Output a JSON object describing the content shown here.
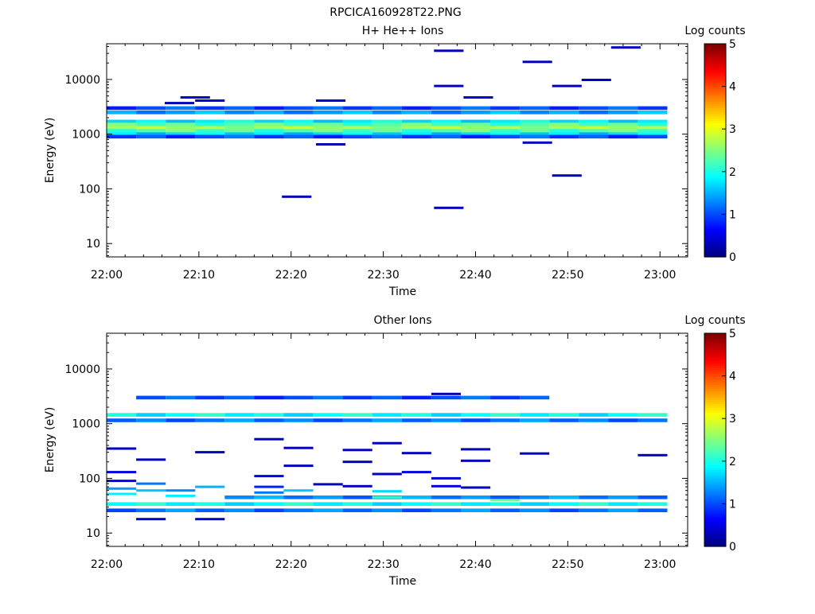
{
  "title": "RPCICA160928T22.PNG",
  "colors": {
    "axis": "#000000",
    "background": "#ffffff"
  },
  "chart_data": [
    {
      "type": "heatmap",
      "title": "H+ He++ Ions",
      "xlabel": "Time",
      "ylabel": "Energy (eV)",
      "xlim": [
        "22:00",
        "23:03"
      ],
      "ylim": [
        5.7,
        45000
      ],
      "yscale": "log",
      "xticks": [
        "22:00",
        "22:10",
        "22:20",
        "22:30",
        "22:40",
        "22:50",
        "23:00"
      ],
      "yticks": [
        10,
        100,
        1000,
        10000
      ],
      "ytick_labels": [
        "10",
        "100",
        "1000",
        "10000"
      ],
      "colorbar": {
        "label": "Log counts",
        "min": 0,
        "max": 5,
        "ticks": [
          "0",
          "1",
          "2",
          "3",
          "4",
          "5"
        ]
      },
      "time_bins_min": [
        0,
        3.2,
        6.4,
        9.6,
        12.8,
        16.0,
        19.2,
        22.4,
        25.6,
        28.8,
        32.0,
        35.2,
        38.4,
        41.6,
        44.8,
        48.0,
        51.2,
        54.4,
        57.6
      ],
      "bands": [
        {
          "energy": 3000,
          "level": 1.0
        },
        {
          "energy": 2500,
          "level": 1.4
        },
        {
          "energy": 1700,
          "level": 1.8
        },
        {
          "energy": 1500,
          "level": 2.3
        },
        {
          "energy": 1300,
          "level": 2.7
        },
        {
          "energy": 1150,
          "level": 2.3
        },
        {
          "energy": 1000,
          "level": 1.7
        },
        {
          "energy": 900,
          "level": 1.0
        }
      ],
      "sparse": [
        {
          "t": 7.9,
          "energy": 3700,
          "level": 0.3
        },
        {
          "t": 9.6,
          "energy": 4700,
          "level": 0.4
        },
        {
          "t": 11.2,
          "energy": 4100,
          "level": 0.4
        },
        {
          "t": 20.6,
          "energy": 72,
          "level": 0.3
        },
        {
          "t": 24.3,
          "energy": 4100,
          "level": 0.4
        },
        {
          "t": 24.3,
          "energy": 650,
          "level": 0.3
        },
        {
          "t": 37.1,
          "energy": 33500,
          "level": 0.3
        },
        {
          "t": 37.1,
          "energy": 7600,
          "level": 0.3
        },
        {
          "t": 37.1,
          "energy": 45,
          "level": 0.3
        },
        {
          "t": 40.3,
          "energy": 4700,
          "level": 0.4
        },
        {
          "t": 46.7,
          "energy": 21000,
          "level": 0.3
        },
        {
          "t": 46.7,
          "energy": 700,
          "level": 0.3
        },
        {
          "t": 49.9,
          "energy": 7600,
          "level": 0.3
        },
        {
          "t": 49.9,
          "energy": 175,
          "level": 0.3
        },
        {
          "t": 53.1,
          "energy": 9800,
          "level": 0.3
        },
        {
          "t": 56.3,
          "energy": 38500,
          "level": 0.3
        }
      ]
    },
    {
      "type": "heatmap",
      "title": "Other Ions",
      "xlabel": "Time",
      "ylabel": "Energy (eV)",
      "xlim": [
        "22:00",
        "23:03"
      ],
      "ylim": [
        5.7,
        45000
      ],
      "yscale": "log",
      "xticks": [
        "22:00",
        "22:10",
        "22:20",
        "22:30",
        "22:40",
        "22:50",
        "23:00"
      ],
      "yticks": [
        10,
        100,
        1000,
        10000
      ],
      "ytick_labels": [
        "10",
        "100",
        "1000",
        "10000"
      ],
      "colorbar": {
        "label": "Log counts",
        "min": 0,
        "max": 5,
        "ticks": [
          "0",
          "1",
          "2",
          "3",
          "4",
          "5"
        ]
      },
      "time_bins_min": [
        0,
        3.2,
        6.4,
        9.6,
        12.8,
        16.0,
        19.2,
        22.4,
        25.6,
        28.8,
        32.0,
        35.2,
        38.4,
        41.6,
        44.8,
        48.0,
        51.2,
        54.4,
        57.6
      ],
      "bands": [
        {
          "energy": 3000,
          "level": 1.0,
          "from": 3.2,
          "to": 48.0
        },
        {
          "energy": 1450,
          "level": 1.9
        },
        {
          "energy": 1150,
          "level": 1.2
        },
        {
          "energy": 45,
          "level": 1.3,
          "from": 12.8
        },
        {
          "energy": 34,
          "level": 1.9
        },
        {
          "energy": 26,
          "level": 1.2
        }
      ],
      "sparse": [
        {
          "t": 1.6,
          "energy": 350,
          "level": 0.3
        },
        {
          "t": 1.6,
          "energy": 130,
          "level": 0.5
        },
        {
          "t": 1.6,
          "energy": 90,
          "level": 0.6
        },
        {
          "t": 1.6,
          "energy": 65,
          "level": 1.4
        },
        {
          "t": 1.6,
          "energy": 52,
          "level": 1.8
        },
        {
          "t": 4.8,
          "energy": 220,
          "level": 0.3
        },
        {
          "t": 4.8,
          "energy": 80,
          "level": 1.2
        },
        {
          "t": 4.8,
          "energy": 60,
          "level": 1.6
        },
        {
          "t": 4.8,
          "energy": 18,
          "level": 0.4
        },
        {
          "t": 8.0,
          "energy": 60,
          "level": 1.3
        },
        {
          "t": 8.0,
          "energy": 48,
          "level": 1.8
        },
        {
          "t": 11.2,
          "energy": 300,
          "level": 0.3
        },
        {
          "t": 11.2,
          "energy": 70,
          "level": 1.5
        },
        {
          "t": 11.2,
          "energy": 18,
          "level": 0.4
        },
        {
          "t": 17.6,
          "energy": 520,
          "level": 0.3
        },
        {
          "t": 17.6,
          "energy": 110,
          "level": 0.5
        },
        {
          "t": 17.6,
          "energy": 70,
          "level": 0.8
        },
        {
          "t": 17.6,
          "energy": 55,
          "level": 1.2
        },
        {
          "t": 20.8,
          "energy": 360,
          "level": 0.3
        },
        {
          "t": 20.8,
          "energy": 170,
          "level": 0.3
        },
        {
          "t": 20.8,
          "energy": 60,
          "level": 1.6
        },
        {
          "t": 24.0,
          "energy": 78,
          "level": 0.3
        },
        {
          "t": 27.2,
          "energy": 330,
          "level": 0.3
        },
        {
          "t": 27.2,
          "energy": 200,
          "level": 0.3
        },
        {
          "t": 27.2,
          "energy": 72,
          "level": 0.3
        },
        {
          "t": 30.4,
          "energy": 440,
          "level": 0.3
        },
        {
          "t": 30.4,
          "energy": 120,
          "level": 0.3
        },
        {
          "t": 30.4,
          "energy": 58,
          "level": 1.7
        },
        {
          "t": 30.4,
          "energy": 45,
          "level": 2.1
        },
        {
          "t": 33.6,
          "energy": 290,
          "level": 0.3
        },
        {
          "t": 33.6,
          "energy": 130,
          "level": 0.5
        },
        {
          "t": 36.8,
          "energy": 3500,
          "level": 0.3
        },
        {
          "t": 36.8,
          "energy": 100,
          "level": 0.4
        },
        {
          "t": 36.8,
          "energy": 72,
          "level": 0.5
        },
        {
          "t": 40.0,
          "energy": 340,
          "level": 0.3
        },
        {
          "t": 40.0,
          "energy": 210,
          "level": 0.3
        },
        {
          "t": 40.0,
          "energy": 68,
          "level": 0.3
        },
        {
          "t": 43.2,
          "energy": 40,
          "level": 2.4
        },
        {
          "t": 46.4,
          "energy": 285,
          "level": 0.3
        },
        {
          "t": 59.2,
          "energy": 265,
          "level": 0.3
        }
      ]
    }
  ]
}
